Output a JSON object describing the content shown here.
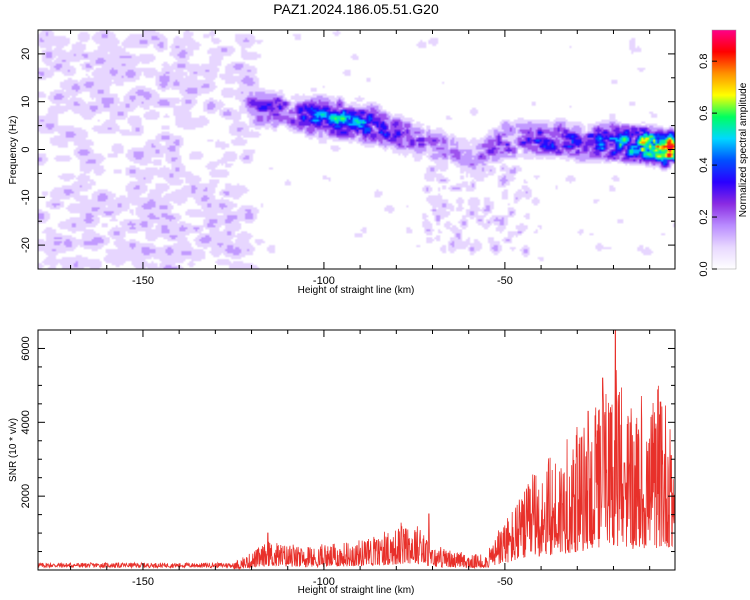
{
  "figure": {
    "title": "PAZ1.2024.186.05.51.G20"
  },
  "chart_data": [
    {
      "type": "heatmap",
      "title": "PAZ1.2024.186.05.51.G20",
      "xlabel": "Height of straight line (km)",
      "ylabel": "Frequency (Hz)",
      "xlim": [
        -179,
        -3
      ],
      "ylim": [
        -25,
        25
      ],
      "x_ticks": [
        -150,
        -100,
        -50
      ],
      "y_ticks": [
        -20,
        -10,
        0,
        10,
        20
      ],
      "colorbar": {
        "label": "Normalized spectral amplitude",
        "range": [
          0.0,
          0.92
        ],
        "ticks": [
          0.0,
          0.2,
          0.4,
          0.6,
          0.8
        ],
        "colormap": [
          "#ffffff",
          "#e8d8ff",
          "#b98cff",
          "#8a2be2",
          "#2a00ff",
          "#0050ff",
          "#00d8ff",
          "#00ff60",
          "#ffff00",
          "#ff9000",
          "#ff0000",
          "#ff0088"
        ]
      },
      "features": {
        "noise_region_x": [
          -179,
          -120
        ],
        "noise_level": 0.12,
        "signal_track": [
          {
            "x": -120,
            "freq": 9
          },
          {
            "x": -100,
            "freq": 7
          },
          {
            "x": -85,
            "freq": 5
          },
          {
            "x": -70,
            "freq": 1
          },
          {
            "x": -60,
            "freq": -2
          },
          {
            "x": -50,
            "freq": 2
          },
          {
            "x": -30,
            "freq": 2
          },
          {
            "x": -10,
            "freq": 1
          },
          {
            "x": -3,
            "freq": 0
          }
        ],
        "signal_amplitude": [
          {
            "x": -120,
            "amp": 0.3
          },
          {
            "x": -95,
            "amp": 0.55
          },
          {
            "x": -80,
            "amp": 0.35
          },
          {
            "x": -60,
            "amp": 0.2
          },
          {
            "x": -50,
            "amp": 0.35
          },
          {
            "x": -25,
            "amp": 0.45
          },
          {
            "x": -10,
            "amp": 0.75
          },
          {
            "x": -5,
            "amp": 0.9
          }
        ]
      }
    },
    {
      "type": "line",
      "xlabel": "Height of straight line (km)",
      "ylabel": "SNR (10 * v/v)",
      "xlim": [
        -179,
        -3
      ],
      "ylim": [
        0,
        6500
      ],
      "x_ticks": [
        -150,
        -100,
        -50
      ],
      "y_ticks": [
        2000,
        4000,
        6000
      ],
      "color": "#e8302a",
      "envelope": [
        {
          "x": -179,
          "y": 150
        },
        {
          "x": -125,
          "y": 150
        },
        {
          "x": -115,
          "y": 700
        },
        {
          "x": -105,
          "y": 500
        },
        {
          "x": -95,
          "y": 650
        },
        {
          "x": -85,
          "y": 800
        },
        {
          "x": -75,
          "y": 1200
        },
        {
          "x": -70,
          "y": 550
        },
        {
          "x": -60,
          "y": 350
        },
        {
          "x": -55,
          "y": 400
        },
        {
          "x": -50,
          "y": 1200
        },
        {
          "x": -40,
          "y": 2500
        },
        {
          "x": -30,
          "y": 3200
        },
        {
          "x": -20,
          "y": 4500
        },
        {
          "x": -15,
          "y": 3800
        },
        {
          "x": -10,
          "y": 3800
        },
        {
          "x": -5,
          "y": 4200
        },
        {
          "x": -3,
          "y": 3200
        }
      ],
      "peaks": [
        {
          "x": -115.5,
          "y": 1000
        },
        {
          "x": -71,
          "y": 1520
        },
        {
          "x": -27,
          "y": 4300
        },
        {
          "x": -23,
          "y": 5200
        },
        {
          "x": -19.5,
          "y": 6500
        },
        {
          "x": -17,
          "y": 2900
        },
        {
          "x": -7,
          "y": 4550
        },
        {
          "x": -4,
          "y": 3100
        }
      ]
    }
  ]
}
